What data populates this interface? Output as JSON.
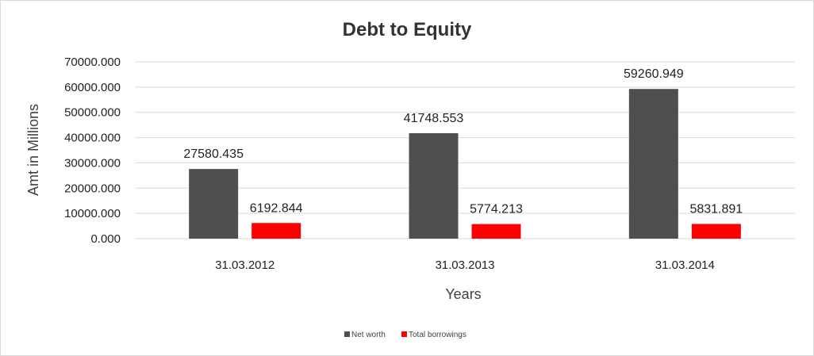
{
  "chart_data": {
    "type": "bar",
    "title": "Debt to Equity",
    "xlabel": "Years",
    "ylabel": "Amt in Millions",
    "categories": [
      "31.03.2012",
      "31.03.2013",
      "31.03.2014"
    ],
    "series": [
      {
        "name": "Net worth",
        "color": "#4f4f4f",
        "values": [
          27580.435,
          41748.553,
          59260.949
        ],
        "labels": [
          "27580.435",
          "41748.553",
          "59260.949"
        ]
      },
      {
        "name": "Total borrowings",
        "color": "#ff0000",
        "values": [
          6192.844,
          5774.213,
          5831.891
        ],
        "labels": [
          "6192.844",
          "5774.213",
          "5831.891"
        ]
      }
    ],
    "ylim": [
      0,
      70000
    ],
    "yticks": [
      0,
      10000,
      20000,
      30000,
      40000,
      50000,
      60000,
      70000
    ],
    "ytick_labels": [
      "0.000",
      "10000.000",
      "20000.000",
      "30000.000",
      "40000.000",
      "50000.000",
      "60000.000",
      "70000.000"
    ],
    "grid": true,
    "legend": "bottom"
  }
}
